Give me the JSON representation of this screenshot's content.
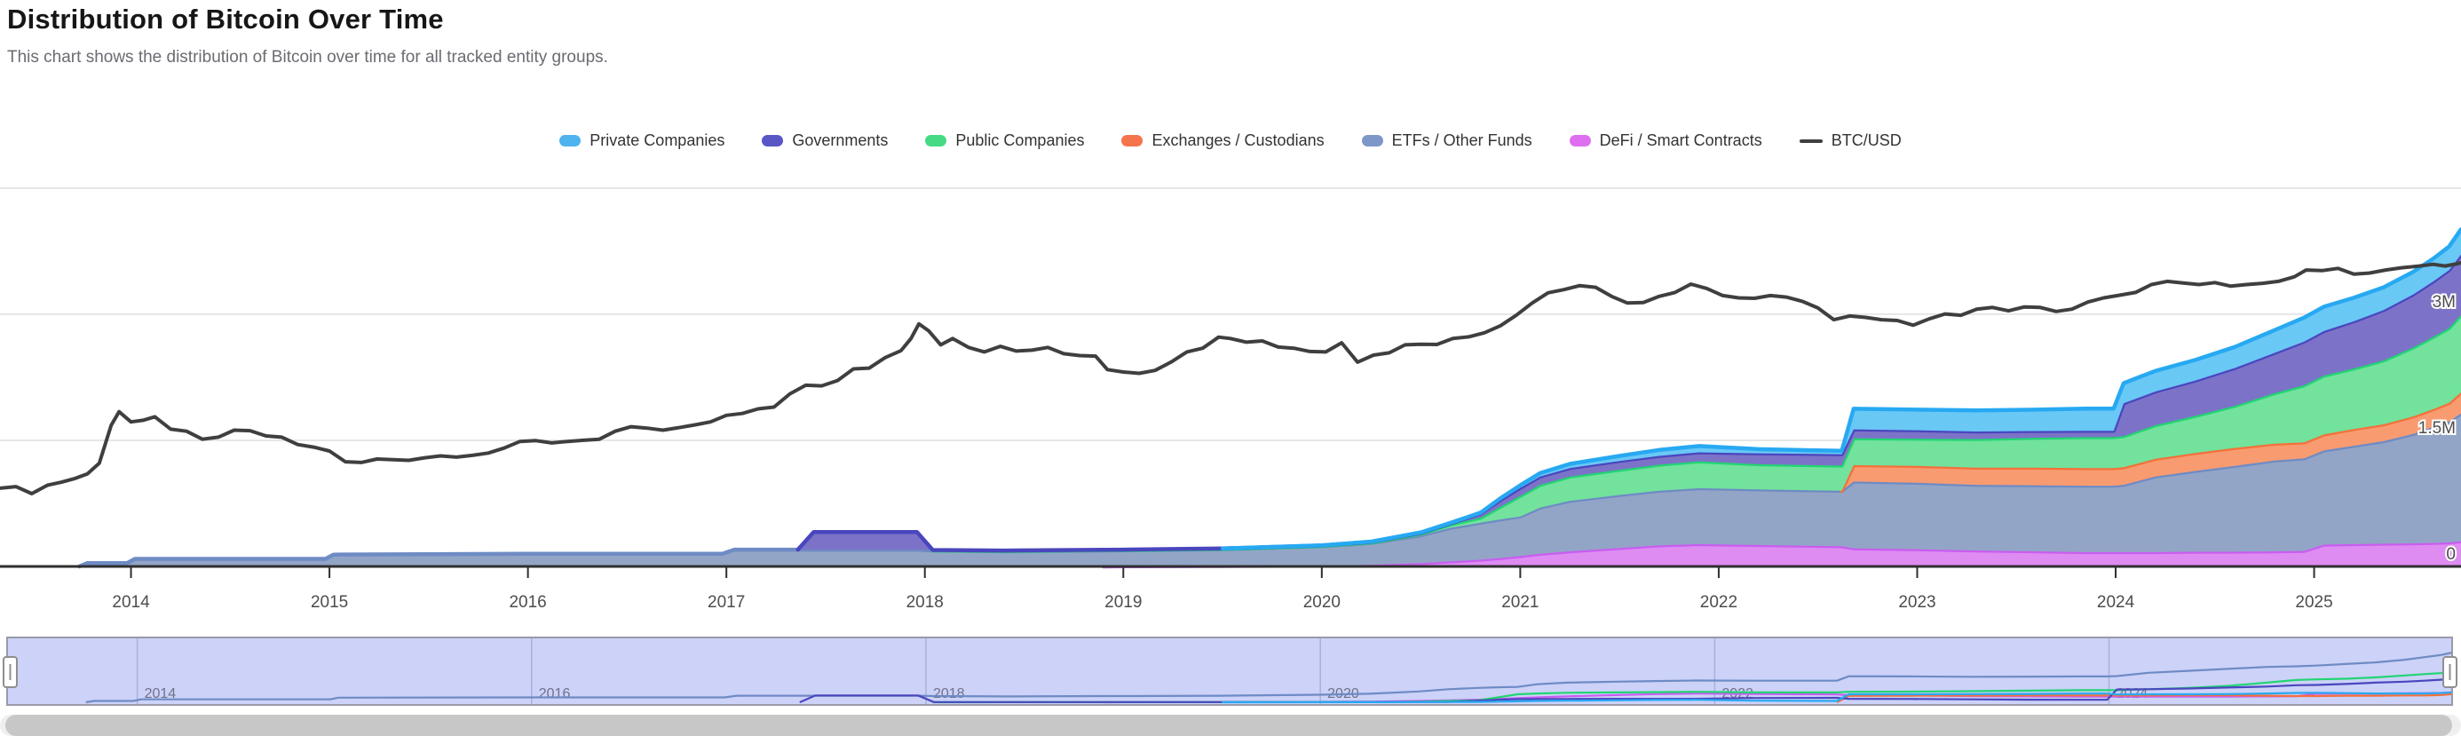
{
  "header": {
    "title": "Distribution of Bitcoin Over Time",
    "subtitle": "This chart shows the distribution of Bitcoin over time for all tracked entity groups."
  },
  "legend": {
    "items": [
      {
        "label": "Private Companies",
        "color": "#4FB3F0",
        "marker": "area"
      },
      {
        "label": "Governments",
        "color": "#5956C6",
        "marker": "area"
      },
      {
        "label": "Public Companies",
        "color": "#46DA85",
        "marker": "area"
      },
      {
        "label": "Exchanges / Custodians",
        "color": "#F4744C",
        "marker": "area"
      },
      {
        "label": "ETFs / Other Funds",
        "color": "#7E97C9",
        "marker": "area"
      },
      {
        "label": "DeFi / Smart Contracts",
        "color": "#DE6FF1",
        "marker": "area"
      },
      {
        "label": "BTC/USD",
        "color": "#3F3F3F",
        "marker": "line"
      }
    ]
  },
  "colors": {
    "gridline": "#e6e6e6",
    "axis_line": "#2f2f2f",
    "tick_label": "#4d4d4d",
    "nav_background": "#ccd2f8",
    "nav_gridline": "#aab0dd",
    "nav_label": "#70708a",
    "nav_frame": "#9a9aa8",
    "scrollbar_thumb": "#c7c7c7",
    "handle_fill": "#ffffff",
    "handle_border": "#8f8f8f"
  },
  "chart_data": {
    "type": "area",
    "stacking": "normal",
    "title": "Distribution of Bitcoin Over Time",
    "unit": "BTC (millions)",
    "x_unit": "decimal year",
    "x_domain": [
      2013.34,
      2025.74
    ],
    "ylim": [
      0,
      4.7
    ],
    "grid": true,
    "legend_position": "top",
    "y_ticks": [
      {
        "value": 0,
        "label": "0"
      },
      {
        "value": 1.5,
        "label": "1.5M"
      },
      {
        "value": 3,
        "label": "3M"
      },
      {
        "value": 4.5,
        "label": ""
      }
    ],
    "x_ticks": [
      {
        "value": 2014,
        "label": "2014"
      },
      {
        "value": 2015,
        "label": "2015"
      },
      {
        "value": 2016,
        "label": "2016"
      },
      {
        "value": 2017,
        "label": "2017"
      },
      {
        "value": 2018,
        "label": "2018"
      },
      {
        "value": 2019,
        "label": "2019"
      },
      {
        "value": 2020,
        "label": "2020"
      },
      {
        "value": 2021,
        "label": "2021"
      },
      {
        "value": 2022,
        "label": "2022"
      },
      {
        "value": 2023,
        "label": "2023"
      },
      {
        "value": 2024,
        "label": "2024"
      },
      {
        "value": 2025,
        "label": "2025"
      }
    ],
    "x": [
      2013.34,
      2013.74,
      2013.78,
      2013.98,
      2014.02,
      2014.98,
      2015.02,
      2015.98,
      2016.98,
      2017.04,
      2017.36,
      2017.44,
      2017.96,
      2018.04,
      2018.4,
      2018.9,
      2019.0,
      2019.5,
      2020.0,
      2020.25,
      2020.5,
      2020.65,
      2020.8,
      2020.9,
      2021.0,
      2021.1,
      2021.25,
      2021.5,
      2021.7,
      2021.9,
      2022.2,
      2022.62,
      2022.68,
      2023.0,
      2023.3,
      2023.6,
      2023.85,
      2023.99,
      2024.04,
      2024.2,
      2024.4,
      2024.6,
      2024.8,
      2024.95,
      2025.05,
      2025.2,
      2025.35,
      2025.5,
      2025.6,
      2025.68,
      2025.74
    ],
    "series": [
      {
        "name": "DeFi / Smart Contracts",
        "slug": "defi-smart-contracts",
        "color": "#C95DF0",
        "fill": "#DE8CF2",
        "values": [
          0,
          0,
          0,
          0,
          0,
          0,
          0,
          0,
          0,
          0,
          0,
          0,
          0,
          0,
          0,
          0,
          0.002,
          0.005,
          0.01,
          0.02,
          0.04,
          0.06,
          0.08,
          0.1,
          0.125,
          0.15,
          0.18,
          0.22,
          0.25,
          0.265,
          0.255,
          0.24,
          0.215,
          0.205,
          0.19,
          0.18,
          0.17,
          0.17,
          0.17,
          0.17,
          0.175,
          0.175,
          0.18,
          0.185,
          0.26,
          0.265,
          0.27,
          0.275,
          0.28,
          0.285,
          0.3
        ]
      },
      {
        "name": "ETFs / Other Funds",
        "slug": "etfs-other-funds",
        "color": "#6E8BC4",
        "fill": "#93A5C6",
        "values": [
          0,
          0,
          0.04,
          0.04,
          0.09,
          0.09,
          0.14,
          0.15,
          0.15,
          0.2,
          0.2,
          0.2,
          0.2,
          0.19,
          0.18,
          0.19,
          0.19,
          0.2,
          0.23,
          0.26,
          0.33,
          0.4,
          0.44,
          0.46,
          0.47,
          0.55,
          0.6,
          0.63,
          0.65,
          0.665,
          0.66,
          0.66,
          0.795,
          0.79,
          0.78,
          0.785,
          0.79,
          0.79,
          0.8,
          0.9,
          0.96,
          1.02,
          1.08,
          1.1,
          1.12,
          1.17,
          1.22,
          1.3,
          1.38,
          1.44,
          1.52
        ]
      },
      {
        "name": "Exchanges / Custodians",
        "slug": "exchanges-custodians",
        "color": "#F4703A",
        "fill": "#F89B71",
        "values": [
          0,
          0,
          0,
          0,
          0,
          0,
          0,
          0,
          0,
          0,
          0,
          0,
          0,
          0,
          0,
          0,
          0,
          0,
          0,
          0,
          0,
          0,
          0,
          0,
          0,
          0,
          0,
          0,
          0,
          0,
          0,
          0,
          0.195,
          0.2,
          0.205,
          0.21,
          0.21,
          0.21,
          0.21,
          0.21,
          0.215,
          0.215,
          0.2,
          0.19,
          0.19,
          0.2,
          0.2,
          0.21,
          0.21,
          0.22,
          0.25
        ]
      },
      {
        "name": "Public Companies",
        "slug": "public-companies",
        "color": "#21D572",
        "fill": "#72E29C",
        "values": [
          0,
          0,
          0,
          0,
          0,
          0,
          0,
          0,
          0,
          0,
          0,
          0,
          0,
          0,
          0.004,
          0.004,
          0.003,
          0.003,
          0.003,
          0.005,
          0.02,
          0.04,
          0.06,
          0.15,
          0.245,
          0.27,
          0.29,
          0.3,
          0.31,
          0.32,
          0.3,
          0.3,
          0.32,
          0.325,
          0.34,
          0.355,
          0.368,
          0.368,
          0.37,
          0.4,
          0.44,
          0.5,
          0.6,
          0.68,
          0.7,
          0.72,
          0.76,
          0.82,
          0.86,
          0.89,
          0.92
        ]
      },
      {
        "name": "Governments",
        "slug": "governments",
        "color": "#4A46BE",
        "fill": "#7C73C8",
        "values": [
          0,
          0,
          0,
          0,
          0,
          0,
          0,
          0,
          0,
          0,
          0,
          0.21,
          0.21,
          0.005,
          0.005,
          0.005,
          0.005,
          0.005,
          0.006,
          0.008,
          0.01,
          0.012,
          0.05,
          0.08,
          0.095,
          0.1,
          0.1,
          0.105,
          0.105,
          0.107,
          0.13,
          0.135,
          0.105,
          0.1,
          0.09,
          0.08,
          0.075,
          0.075,
          0.39,
          0.4,
          0.42,
          0.45,
          0.48,
          0.52,
          0.53,
          0.56,
          0.6,
          0.63,
          0.66,
          0.69,
          0.72
        ]
      },
      {
        "name": "Private Companies",
        "slug": "private-companies",
        "color": "#27A9F2",
        "fill": "#6AC8F5",
        "values": [
          0,
          0,
          0,
          0,
          0,
          0,
          0,
          0,
          0,
          0,
          0,
          0,
          0,
          0,
          0,
          0,
          0,
          0,
          0.002,
          0.003,
          0.005,
          0.008,
          0.01,
          0.02,
          0.03,
          0.04,
          0.05,
          0.06,
          0.07,
          0.075,
          0.05,
          0.04,
          0.245,
          0.245,
          0.25,
          0.255,
          0.265,
          0.265,
          0.24,
          0.245,
          0.245,
          0.25,
          0.27,
          0.285,
          0.29,
          0.28,
          0.27,
          0.27,
          0.27,
          0.28,
          0.3
        ]
      }
    ],
    "line_series": {
      "name": "BTC/USD",
      "slug": "btc-usd",
      "color": "#3F3F3F",
      "scale": "log",
      "unit": "USD",
      "points": [
        [
          2013.34,
          95
        ],
        [
          2013.42,
          100
        ],
        [
          2013.5,
          80
        ],
        [
          2013.58,
          105
        ],
        [
          2013.65,
          115
        ],
        [
          2013.72,
          130
        ],
        [
          2013.78,
          150
        ],
        [
          2013.84,
          210
        ],
        [
          2013.9,
          700
        ],
        [
          2013.94,
          1080
        ],
        [
          2014.0,
          780
        ],
        [
          2014.06,
          820
        ],
        [
          2014.12,
          920
        ],
        [
          2014.2,
          620
        ],
        [
          2014.28,
          580
        ],
        [
          2014.36,
          450
        ],
        [
          2014.44,
          480
        ],
        [
          2014.52,
          600
        ],
        [
          2014.6,
          590
        ],
        [
          2014.68,
          500
        ],
        [
          2014.76,
          480
        ],
        [
          2014.84,
          380
        ],
        [
          2014.92,
          350
        ],
        [
          2015.0,
          310
        ],
        [
          2015.08,
          220
        ],
        [
          2015.16,
          215
        ],
        [
          2015.24,
          240
        ],
        [
          2015.32,
          235
        ],
        [
          2015.4,
          230
        ],
        [
          2015.48,
          250
        ],
        [
          2015.56,
          265
        ],
        [
          2015.64,
          255
        ],
        [
          2015.72,
          270
        ],
        [
          2015.8,
          290
        ],
        [
          2015.88,
          340
        ],
        [
          2015.96,
          420
        ],
        [
          2016.04,
          430
        ],
        [
          2016.12,
          400
        ],
        [
          2016.2,
          420
        ],
        [
          2016.28,
          435
        ],
        [
          2016.36,
          450
        ],
        [
          2016.44,
          580
        ],
        [
          2016.52,
          670
        ],
        [
          2016.6,
          640
        ],
        [
          2016.68,
          600
        ],
        [
          2016.76,
          650
        ],
        [
          2016.84,
          710
        ],
        [
          2016.92,
          780
        ],
        [
          2017.0,
          960
        ],
        [
          2017.08,
          1020
        ],
        [
          2017.16,
          1180
        ],
        [
          2017.24,
          1250
        ],
        [
          2017.32,
          1900
        ],
        [
          2017.4,
          2500
        ],
        [
          2017.48,
          2450
        ],
        [
          2017.56,
          2900
        ],
        [
          2017.64,
          4200
        ],
        [
          2017.72,
          4300
        ],
        [
          2017.8,
          6000
        ],
        [
          2017.88,
          7500
        ],
        [
          2017.93,
          11000
        ],
        [
          2017.97,
          17500
        ],
        [
          2018.02,
          14000
        ],
        [
          2018.08,
          9000
        ],
        [
          2018.14,
          11000
        ],
        [
          2018.22,
          8300
        ],
        [
          2018.3,
          7200
        ],
        [
          2018.38,
          8600
        ],
        [
          2018.46,
          7400
        ],
        [
          2018.54,
          7600
        ],
        [
          2018.62,
          8300
        ],
        [
          2018.7,
          6800
        ],
        [
          2018.78,
          6400
        ],
        [
          2018.86,
          6300
        ],
        [
          2018.92,
          4100
        ],
        [
          2019.0,
          3800
        ],
        [
          2019.08,
          3650
        ],
        [
          2019.16,
          4000
        ],
        [
          2019.24,
          5200
        ],
        [
          2019.32,
          7200
        ],
        [
          2019.4,
          8100
        ],
        [
          2019.48,
          11500
        ],
        [
          2019.54,
          11000
        ],
        [
          2019.62,
          9800
        ],
        [
          2019.7,
          10200
        ],
        [
          2019.78,
          8400
        ],
        [
          2019.86,
          8100
        ],
        [
          2019.94,
          7300
        ],
        [
          2020.02,
          7200
        ],
        [
          2020.1,
          9600
        ],
        [
          2020.18,
          5200
        ],
        [
          2020.26,
          6500
        ],
        [
          2020.34,
          7000
        ],
        [
          2020.42,
          9000
        ],
        [
          2020.5,
          9200
        ],
        [
          2020.58,
          9100
        ],
        [
          2020.66,
          11000
        ],
        [
          2020.74,
          11600
        ],
        [
          2020.82,
          13200
        ],
        [
          2020.9,
          16500
        ],
        [
          2020.98,
          23000
        ],
        [
          2021.06,
          34000
        ],
        [
          2021.14,
          47000
        ],
        [
          2021.22,
          52000
        ],
        [
          2021.3,
          59000
        ],
        [
          2021.38,
          56000
        ],
        [
          2021.46,
          42000
        ],
        [
          2021.54,
          34000
        ],
        [
          2021.62,
          34500
        ],
        [
          2021.7,
          42000
        ],
        [
          2021.78,
          47500
        ],
        [
          2021.86,
          62000
        ],
        [
          2021.94,
          54000
        ],
        [
          2022.02,
          43000
        ],
        [
          2022.1,
          40000
        ],
        [
          2022.18,
          39500
        ],
        [
          2022.26,
          43000
        ],
        [
          2022.34,
          41000
        ],
        [
          2022.42,
          36000
        ],
        [
          2022.5,
          29000
        ],
        [
          2022.58,
          20000
        ],
        [
          2022.66,
          22500
        ],
        [
          2022.74,
          21500
        ],
        [
          2022.82,
          20000
        ],
        [
          2022.9,
          19500
        ],
        [
          2022.98,
          16800
        ],
        [
          2023.06,
          20500
        ],
        [
          2023.14,
          24000
        ],
        [
          2023.22,
          23000
        ],
        [
          2023.3,
          28000
        ],
        [
          2023.38,
          29500
        ],
        [
          2023.46,
          26500
        ],
        [
          2023.54,
          30000
        ],
        [
          2023.62,
          29500
        ],
        [
          2023.7,
          26000
        ],
        [
          2023.78,
          28000
        ],
        [
          2023.86,
          35000
        ],
        [
          2023.94,
          40000
        ],
        [
          2024.02,
          43500
        ],
        [
          2024.1,
          47500
        ],
        [
          2024.18,
          61000
        ],
        [
          2024.26,
          67500
        ],
        [
          2024.34,
          64000
        ],
        [
          2024.42,
          61000
        ],
        [
          2024.5,
          65000
        ],
        [
          2024.58,
          58000
        ],
        [
          2024.66,
          61000
        ],
        [
          2024.74,
          63500
        ],
        [
          2024.82,
          67500
        ],
        [
          2024.9,
          78000
        ],
        [
          2024.96,
          97000
        ],
        [
          2025.04,
          95000
        ],
        [
          2025.12,
          102000
        ],
        [
          2025.2,
          85000
        ],
        [
          2025.28,
          88000
        ],
        [
          2025.36,
          97000
        ],
        [
          2025.44,
          104000
        ],
        [
          2025.52,
          109000
        ],
        [
          2025.6,
          116000
        ],
        [
          2025.66,
          110000
        ],
        [
          2025.72,
          118000
        ],
        [
          2025.74,
          122000
        ]
      ]
    }
  },
  "navigator": {
    "year_labels": [
      2014,
      2016,
      2018,
      2020,
      2022,
      2024
    ],
    "value_max": 1.9
  }
}
